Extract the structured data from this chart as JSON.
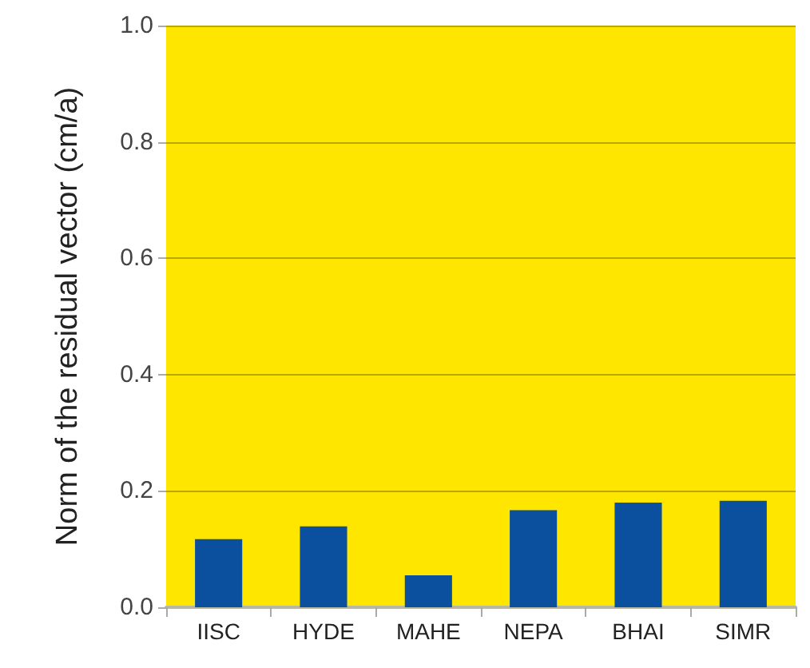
{
  "chart_data": {
    "type": "bar",
    "ylabel": "Norm of the residual vector (cm/a)",
    "categories": [
      "IISC",
      "HYDE",
      "MAHE",
      "NEPA",
      "BHAI",
      "SIMR"
    ],
    "values": [
      0.117,
      0.139,
      0.055,
      0.167,
      0.18,
      0.183
    ],
    "color": "#0b4f9f",
    "ylim": [
      0,
      1.0
    ],
    "yticks": [
      {
        "value": 0,
        "label": "0.0"
      },
      {
        "value": 0.2,
        "label": "0.2"
      },
      {
        "value": 0.4,
        "label": "0.4"
      },
      {
        "value": 0.6,
        "label": "0.6"
      },
      {
        "value": 0.8,
        "label": "0.8"
      },
      {
        "value": 1.0,
        "label": "1.0"
      }
    ],
    "grid": "y"
  }
}
